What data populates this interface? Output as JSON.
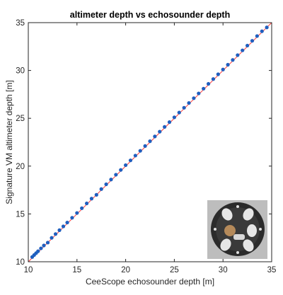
{
  "chart_data": {
    "type": "scatter",
    "title": "altimeter depth vs echosounder depth",
    "xlabel": "CeeScope echosounder depth [m]",
    "ylabel": "Signature VM altimeter depth [m]",
    "xlim": [
      10,
      35
    ],
    "ylim": [
      10,
      35
    ],
    "xticks": [
      10,
      15,
      20,
      25,
      30,
      35
    ],
    "yticks": [
      10,
      15,
      20,
      25,
      30,
      35
    ],
    "grid": false,
    "legend": "none",
    "reference_line": {
      "x": [
        10,
        35
      ],
      "y": [
        10,
        35
      ],
      "style": "1:1"
    },
    "series": [
      {
        "x": [
          10.4,
          10.6,
          10.8,
          11.0,
          11.3,
          11.6,
          12.0,
          12.4,
          12.8,
          13.2,
          13.6,
          14.0,
          14.5,
          15.0,
          15.5,
          16.0,
          16.5,
          17.0,
          17.5,
          18.0,
          18.5,
          19.0,
          19.5,
          20.0,
          20.5,
          21.0,
          21.5,
          22.0,
          22.5,
          23.0,
          23.5,
          24.0,
          24.5,
          25.0,
          25.5,
          26.0,
          26.5,
          27.0,
          27.5,
          28.0,
          28.5,
          29.0,
          29.5,
          30.0,
          30.5,
          31.0,
          31.5,
          32.0,
          32.5,
          33.0,
          33.5,
          34.0,
          34.5
        ],
        "y": [
          10.5,
          10.7,
          10.9,
          11.1,
          11.4,
          11.7,
          12.0,
          12.5,
          12.9,
          13.3,
          13.7,
          14.1,
          14.6,
          15.1,
          15.6,
          16.1,
          16.6,
          17.0,
          17.6,
          18.1,
          18.6,
          19.1,
          19.6,
          20.1,
          20.6,
          21.1,
          21.6,
          22.1,
          22.6,
          23.1,
          23.6,
          24.1,
          24.6,
          25.1,
          25.6,
          26.1,
          26.6,
          27.1,
          27.6,
          28.1,
          28.6,
          29.1,
          29.6,
          30.1,
          30.6,
          31.1,
          31.6,
          32.1,
          32.6,
          33.1,
          33.6,
          34.1,
          34.5
        ]
      }
    ]
  },
  "colors": {
    "points": "#1f5fbf",
    "reference_line": "#ff3b3b",
    "axes": "#262626",
    "background": "#ffffff"
  },
  "inset_photo": {
    "icon": "instrument-photo-icon"
  }
}
